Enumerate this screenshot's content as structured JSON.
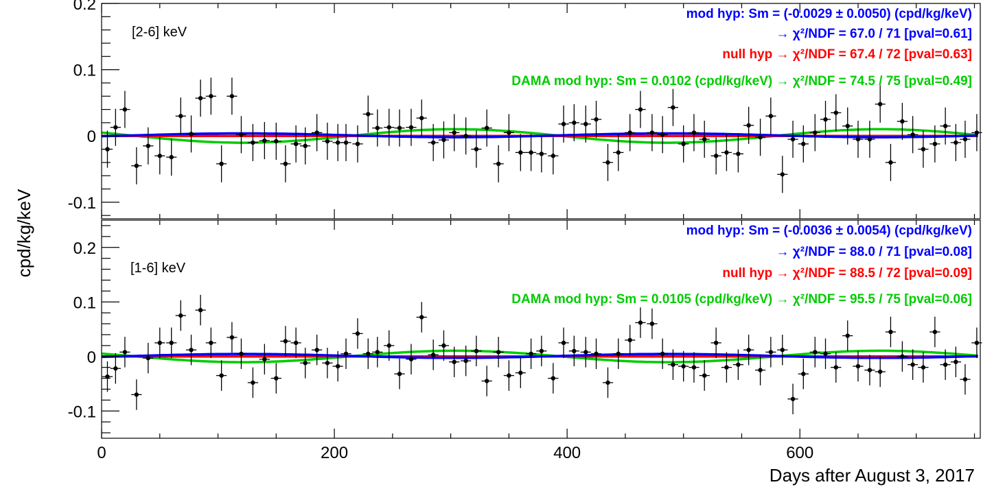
{
  "chart_data": [
    {
      "type": "scatter",
      "energy_range": "[2-6] keV",
      "ylim": [
        -0.125,
        0.2
      ],
      "xlim": [
        0,
        755
      ],
      "yticks": [
        "0.2",
        "0.1",
        "0",
        "-0.1"
      ],
      "ytick_values": [
        0.2,
        0.1,
        0,
        -0.1
      ],
      "legend": [
        {
          "text": "mod hyp: Sm = (-0.0029 ± 0.0050) (cpd/kg/keV)",
          "color": "#0000ff"
        },
        {
          "text": "→ χ²/NDF = 67.0 / 71 [pval=0.61]",
          "color": "#0000ff"
        },
        {
          "text": "null hyp → χ²/NDF = 67.4 / 72 [pval=0.63]",
          "color": "#ff0000"
        },
        {
          "text": "DAMA mod hyp: Sm = 0.0102 (cpd/kg/keV) → χ²/NDF = 74.5 / 75 [pval=0.49]",
          "color": "#00cc00"
        }
      ],
      "series": [
        {
          "name": "data",
          "x": [
            5,
            12,
            20,
            30,
            40,
            50,
            60,
            68,
            77,
            85,
            94,
            103,
            112,
            120,
            130,
            140,
            150,
            158,
            167,
            175,
            185,
            194,
            203,
            210,
            220,
            229,
            237,
            247,
            256,
            266,
            275,
            285,
            294,
            303,
            313,
            322,
            331,
            341,
            350,
            360,
            369,
            378,
            388,
            397,
            406,
            416,
            425,
            435,
            444,
            454,
            463,
            473,
            482,
            491,
            500,
            509,
            518,
            528,
            537,
            547,
            556,
            566,
            575,
            585,
            594,
            603,
            613,
            622,
            631,
            641,
            650,
            660,
            669,
            678,
            688,
            697,
            706,
            716,
            725,
            734,
            742,
            752
          ],
          "y": [
            -0.02,
            0.013,
            0.04,
            -0.045,
            -0.015,
            -0.03,
            -0.032,
            0.03,
            0.003,
            0.057,
            0.06,
            -0.042,
            0.06,
            0.002,
            -0.01,
            -0.007,
            -0.008,
            -0.042,
            -0.012,
            -0.015,
            0.005,
            -0.008,
            -0.01,
            -0.01,
            -0.012,
            0.033,
            0.012,
            0.013,
            0.012,
            0.013,
            0.027,
            -0.01,
            -0.006,
            0.005,
            0,
            -0.02,
            0.012,
            -0.042,
            0.005,
            -0.025,
            -0.025,
            -0.027,
            -0.03,
            0.018,
            0.02,
            0.018,
            0.025,
            -0.04,
            -0.025,
            0.005,
            0.04,
            0.005,
            0.002,
            0.043,
            -0.012,
            0.005,
            -0.005,
            -0.03,
            -0.025,
            -0.027,
            0.016,
            -0.002,
            0.03,
            -0.058,
            -0.005,
            -0.012,
            0.005,
            0.025,
            0.035,
            0.015,
            -0.005,
            -0.005,
            0.048,
            -0.04,
            0.022,
            0.002,
            -0.02,
            -0.012,
            0.015,
            -0.01,
            -0.005,
            0.005
          ]
        }
      ],
      "fits": [
        {
          "name": "mod hyp",
          "color": "#0000ff",
          "amplitude": -0.0029,
          "offset": 0.001
        },
        {
          "name": "null hyp",
          "color": "#ff0000",
          "amplitude": 0,
          "offset": 0
        },
        {
          "name": "DAMA mod hyp",
          "color": "#00cc00",
          "amplitude": 0.0102,
          "offset": 0
        }
      ]
    },
    {
      "type": "scatter",
      "energy_range": "[1-6] keV",
      "ylim": [
        -0.15,
        0.25
      ],
      "xlim": [
        0,
        755
      ],
      "yticks": [
        "0.2",
        "0.1",
        "0",
        "-0.1"
      ],
      "ytick_values": [
        0.2,
        0.1,
        0,
        -0.1
      ],
      "legend": [
        {
          "text": "mod hyp: Sm = (-0.0036 ± 0.0054) (cpd/kg/keV)",
          "color": "#0000ff"
        },
        {
          "text": "→ χ²/NDF = 88.0 / 71 [pval=0.08]",
          "color": "#0000ff"
        },
        {
          "text": "null hyp → χ²/NDF = 88.5 / 72 [pval=0.09]",
          "color": "#ff0000"
        },
        {
          "text": "DAMA mod hyp: Sm = 0.0105 (cpd/kg/keV) → χ²/NDF = 95.5 / 75 [pval=0.06]",
          "color": "#00cc00"
        }
      ],
      "series": [
        {
          "name": "data",
          "x": [
            5,
            12,
            20,
            30,
            40,
            50,
            60,
            68,
            77,
            85,
            94,
            103,
            112,
            120,
            130,
            140,
            150,
            158,
            167,
            175,
            185,
            194,
            203,
            210,
            220,
            229,
            237,
            247,
            256,
            266,
            275,
            285,
            294,
            303,
            313,
            322,
            331,
            341,
            350,
            360,
            369,
            378,
            388,
            397,
            406,
            416,
            425,
            435,
            444,
            454,
            463,
            473,
            482,
            491,
            500,
            509,
            518,
            528,
            537,
            547,
            556,
            566,
            575,
            585,
            594,
            603,
            613,
            622,
            631,
            641,
            650,
            660,
            669,
            678,
            688,
            697,
            706,
            716,
            725,
            734,
            742,
            752
          ],
          "y": [
            -0.037,
            -0.022,
            0.008,
            -0.07,
            -0.003,
            0.025,
            0.025,
            0.075,
            0.012,
            0.085,
            0.025,
            -0.035,
            0.035,
            0.005,
            -0.048,
            -0.005,
            -0.04,
            0.028,
            0.025,
            -0.012,
            0.012,
            -0.012,
            -0.018,
            0.005,
            0.042,
            0.005,
            0.008,
            0.02,
            -0.032,
            -0.005,
            0.072,
            0.003,
            0.02,
            -0.01,
            -0.008,
            0.01,
            -0.045,
            0.008,
            -0.035,
            -0.03,
            0.005,
            0.01,
            -0.04,
            0.025,
            0.01,
            0.008,
            0.005,
            -0.048,
            0.005,
            0.03,
            0.062,
            0.06,
            0.005,
            -0.015,
            -0.018,
            -0.02,
            -0.035,
            0.025,
            -0.02,
            -0.015,
            0.012,
            -0.025,
            0.008,
            0.012,
            -0.078,
            -0.032,
            0.008,
            0.005,
            -0.02,
            0.038,
            -0.018,
            -0.025,
            -0.028,
            0.045,
            0,
            -0.015,
            -0.02,
            0.045,
            -0.015,
            -0.01,
            -0.042,
            0.025
          ]
        }
      ],
      "fits": [
        {
          "name": "mod hyp",
          "color": "#0000ff",
          "amplitude": -0.0036,
          "offset": 0.001
        },
        {
          "name": "null hyp",
          "color": "#ff0000",
          "amplitude": 0,
          "offset": 0
        },
        {
          "name": "DAMA mod hyp",
          "color": "#00cc00",
          "amplitude": 0.0105,
          "offset": 0
        }
      ]
    }
  ],
  "shared": {
    "ylabel": "cpd/kg/keV",
    "xlabel": "Days after August 3, 2017",
    "xticks": [
      "0",
      "200",
      "400",
      "600"
    ],
    "xtick_values": [
      0,
      200,
      400,
      600
    ],
    "error_bar": {
      "x_half_width_days": 4.5,
      "y_half_width": 0.028
    },
    "modulation": {
      "period_days": 365.25,
      "phase_day": 304
    }
  }
}
